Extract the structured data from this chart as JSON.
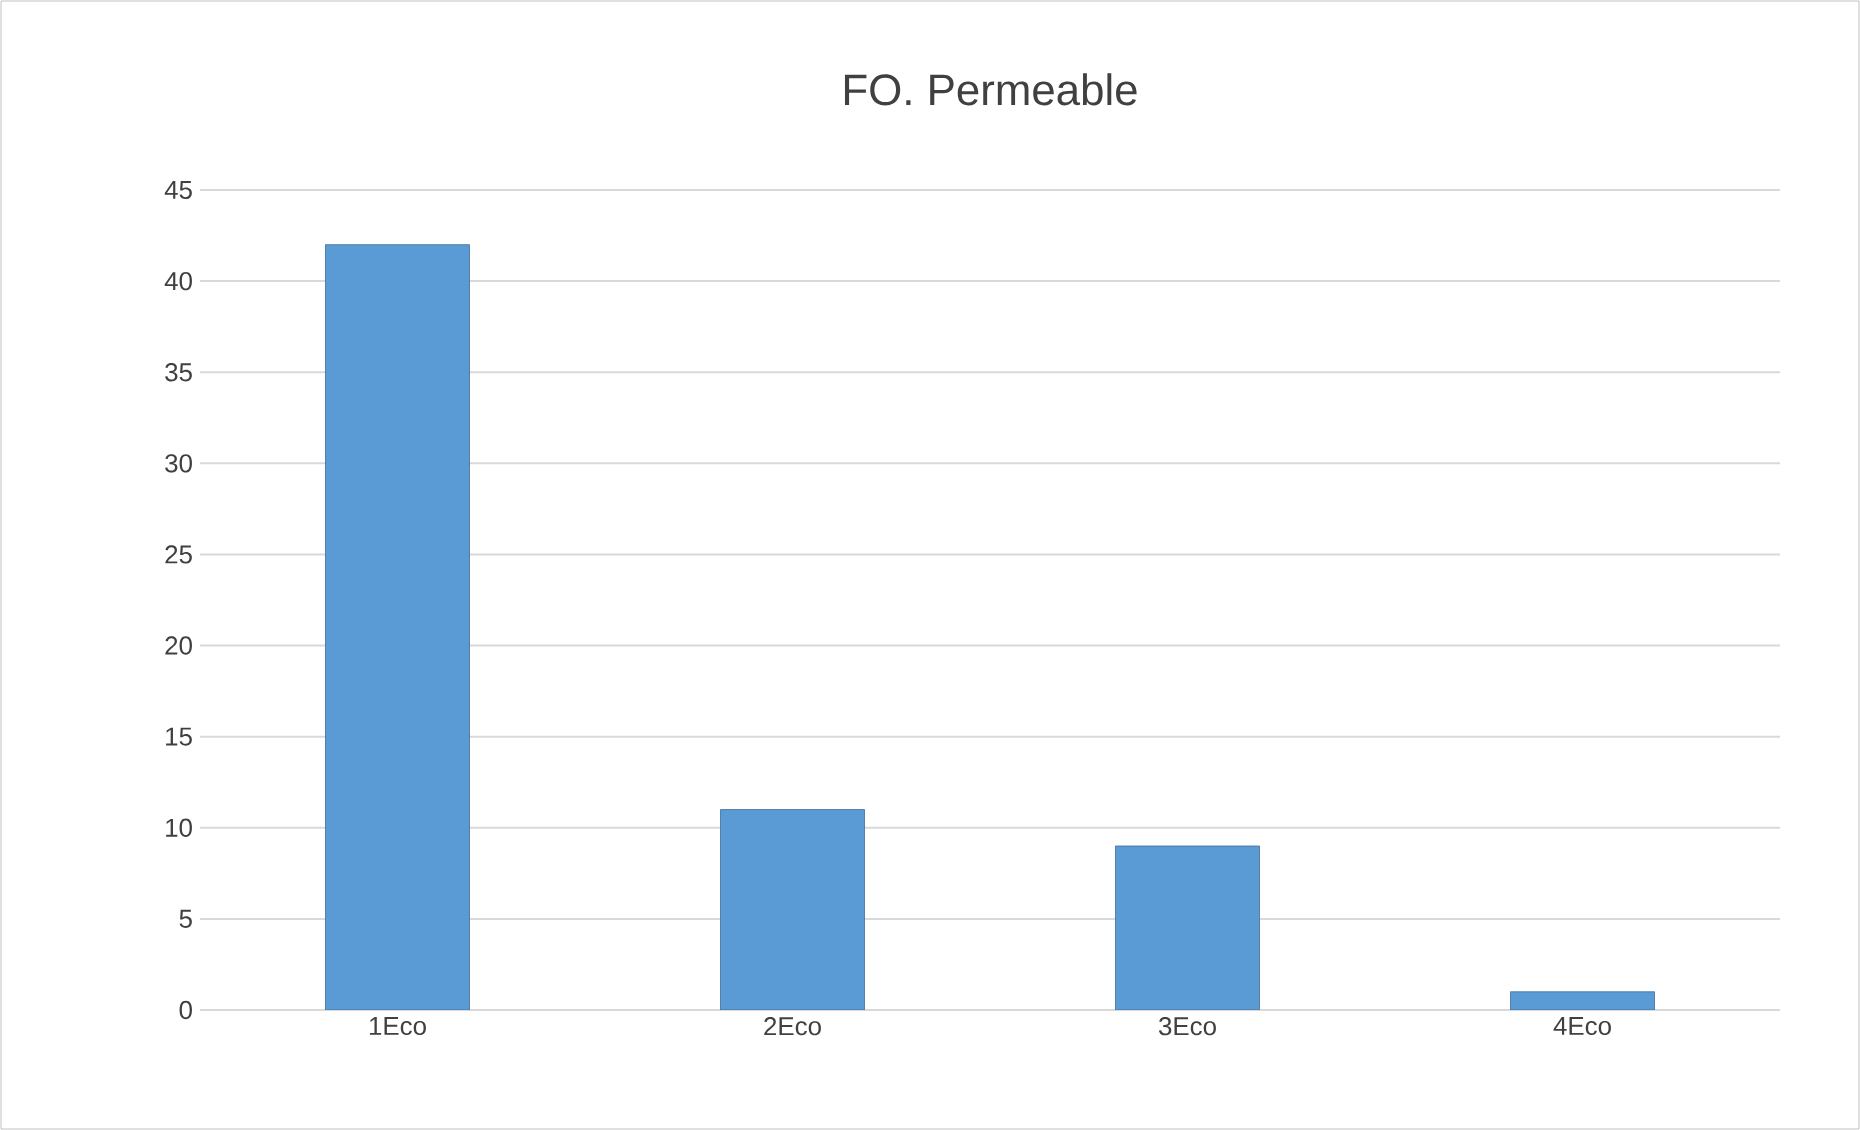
{
  "chart_data": {
    "type": "bar",
    "title": "FO. Permeable",
    "categories": [
      "1Eco",
      "2Eco",
      "3Eco",
      "4Eco"
    ],
    "values": [
      42,
      11,
      9,
      1
    ],
    "color": "#5b9bd5",
    "ylim": [
      0,
      45
    ],
    "yticks": [
      0,
      5,
      10,
      15,
      20,
      25,
      30,
      35,
      40,
      45
    ],
    "grid": "y"
  }
}
